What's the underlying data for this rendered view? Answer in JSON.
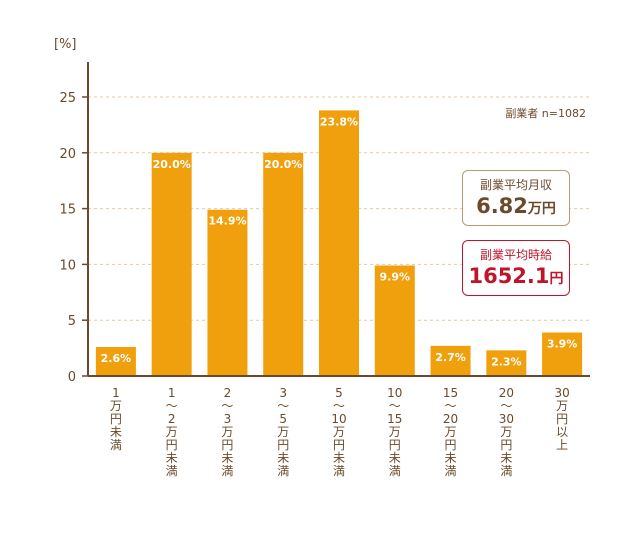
{
  "chart_data": {
    "type": "bar",
    "y_unit": "[%]",
    "ylim": [
      0,
      25
    ],
    "yticks": [
      0,
      5,
      10,
      15,
      20,
      25
    ],
    "grid": true,
    "categories": [
      "1万円未満",
      "1〜2万円未満",
      "2〜3万円未満",
      "3〜5万円未満",
      "5〜10万円未満",
      "10〜15万円未満",
      "15〜20万円未満",
      "20〜30万円未満",
      "30万円以上"
    ],
    "values": [
      2.6,
      20.0,
      14.9,
      20.0,
      23.8,
      9.9,
      2.7,
      2.3,
      3.9
    ],
    "value_labels": [
      "2.6%",
      "20.0%",
      "14.9%",
      "20.0%",
      "23.8%",
      "9.9%",
      "2.7%",
      "2.3%",
      "3.9%"
    ],
    "sample_note": "副業者 n=1082"
  },
  "summary": {
    "monthly_title": "副業平均月収",
    "monthly_value": "6.82",
    "monthly_unit": "万円",
    "hourly_title": "副業平均時給",
    "hourly_value": "1652.1",
    "hourly_unit": "円"
  },
  "colors": {
    "bar": "#f0a00c",
    "axis": "#6b4a2b",
    "grid": "#e3c9a6",
    "hourly_accent": "#c0142a"
  }
}
